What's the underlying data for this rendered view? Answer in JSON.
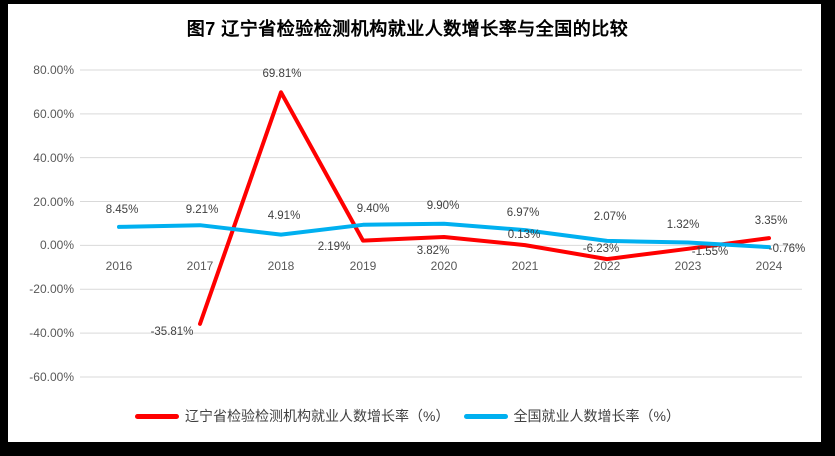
{
  "chart_data": {
    "type": "line",
    "title": "图7  辽宁省检验检测机构就业人数增长率与全国的比较",
    "categories": [
      "2016",
      "2017",
      "2018",
      "2019",
      "2020",
      "2021",
      "2022",
      "2023",
      "2024"
    ],
    "series": [
      {
        "name": "辽宁省检验检测机构就业人数增长率（%）",
        "color": "#ff0000",
        "values": [
          null,
          -35.81,
          69.81,
          2.19,
          3.82,
          0.13,
          -6.23,
          -1.55,
          3.35
        ],
        "labels": [
          "",
          "-35.81%",
          "69.81%",
          "2.19%",
          "3.82%",
          "0.13%",
          "-6.23%",
          "-1.55%",
          "3.35%"
        ]
      },
      {
        "name": "全国就业人数增长率（%）",
        "color": "#00b0f0",
        "values": [
          8.45,
          9.21,
          4.91,
          9.4,
          9.9,
          6.97,
          2.07,
          1.32,
          -0.76
        ],
        "labels": [
          "8.45%",
          "9.21%",
          "4.91%",
          "9.40%",
          "9.90%",
          "6.97%",
          "2.07%",
          "1.32%",
          "-0.76%"
        ]
      }
    ],
    "ylim": [
      -60,
      80
    ],
    "ytick_step": 20,
    "ytick_labels": [
      "80.00%",
      "60.00%",
      "40.00%",
      "20.00%",
      "0.00%",
      "-20.00%",
      "-40.00%",
      "-60.00%"
    ],
    "grid": true,
    "legend_position": "bottom",
    "colors": {
      "gridline": "#d9d9d9",
      "axis_text": "#595959",
      "data_label": "#404040",
      "title": "#000000",
      "page_edge": "#000000"
    }
  }
}
